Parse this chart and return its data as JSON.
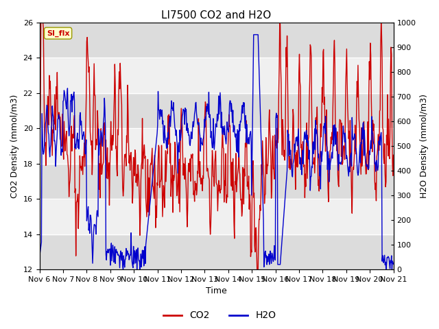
{
  "title": "LI7500 CO2 and H2O",
  "xlabel": "Time",
  "ylabel_left": "CO2 Density (mmol/m3)",
  "ylabel_right": "H2O Density (mmol/m3)",
  "co2_color": "#cc0000",
  "h2o_color": "#0000cc",
  "co2_linewidth": 1.0,
  "h2o_linewidth": 1.0,
  "ylim_left": [
    12,
    26
  ],
  "ylim_right": [
    0,
    1000
  ],
  "yticks_left": [
    12,
    14,
    16,
    18,
    20,
    22,
    24,
    26
  ],
  "yticks_right": [
    0,
    100,
    200,
    300,
    400,
    500,
    600,
    700,
    800,
    900,
    1000
  ],
  "xtick_labels": [
    "Nov 6",
    "Nov 7",
    "Nov 8",
    "Nov 9",
    "Nov 10",
    "Nov 11",
    "Nov 12",
    "Nov 13",
    "Nov 14",
    "Nov 15",
    "Nov 16",
    "Nov 17",
    "Nov 18",
    "Nov 19",
    "Nov 20",
    "Nov 21"
  ],
  "band_colors": [
    "#dcdcdc",
    "#f0f0f0"
  ],
  "si_flx_label": "SI_flx",
  "si_flx_color": "#cc0000",
  "si_flx_bg": "#ffffcc",
  "legend_co2": "CO2",
  "legend_h2o": "H2O",
  "title_fontsize": 11,
  "axis_label_fontsize": 9,
  "tick_fontsize": 8,
  "figsize": [
    6.4,
    4.8
  ],
  "dpi": 100
}
